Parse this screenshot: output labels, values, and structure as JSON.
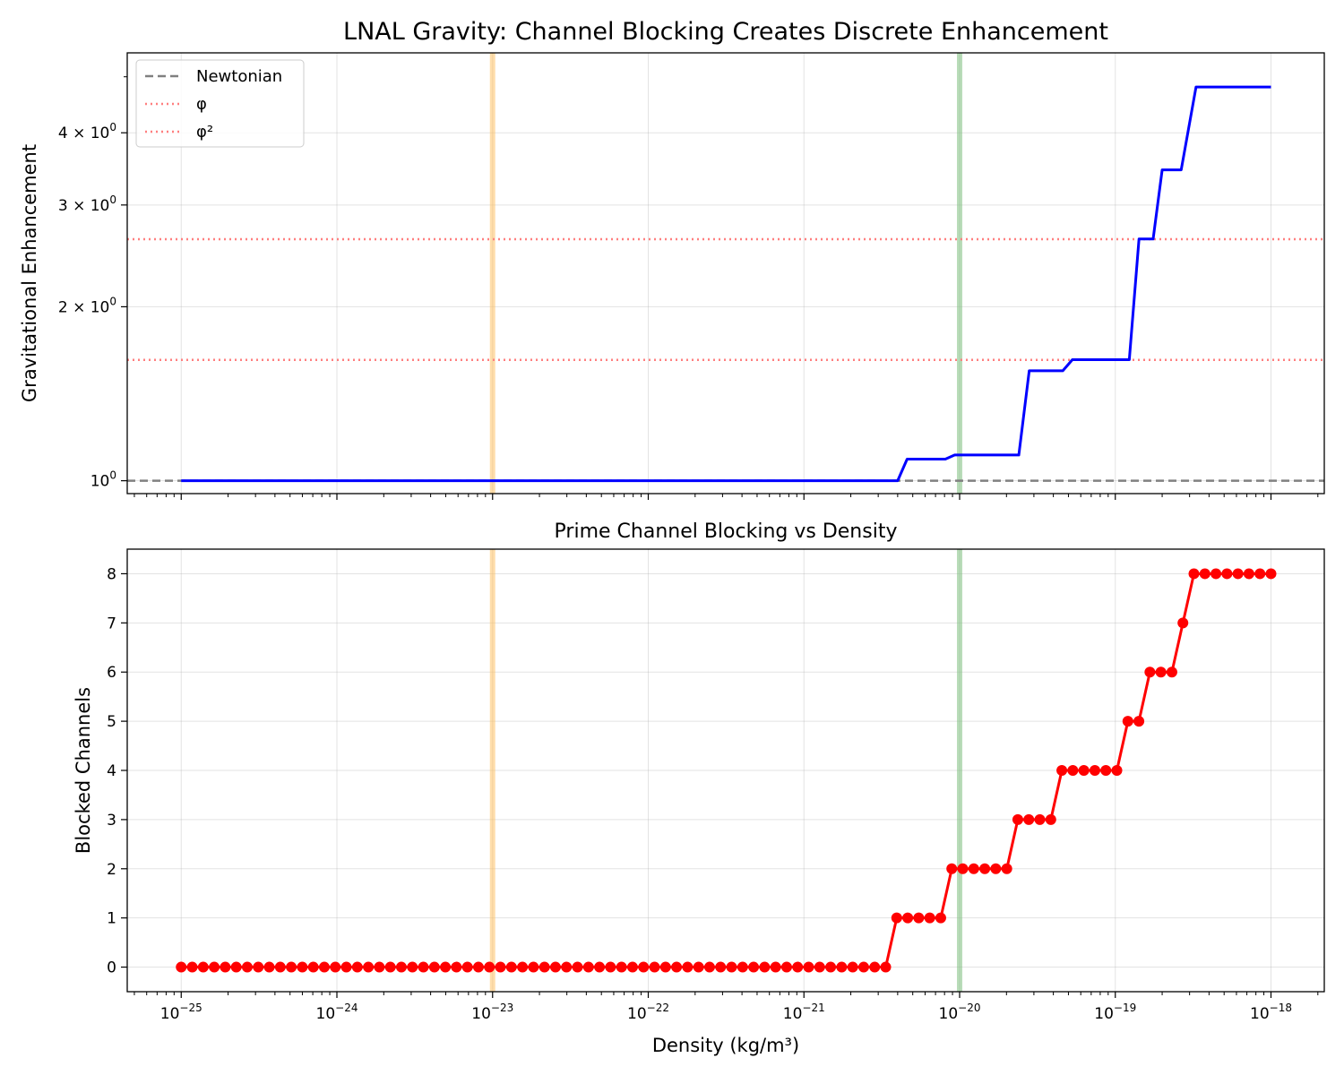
{
  "chart_data": [
    {
      "type": "line",
      "title": "LNAL Gravity: Channel Blocking Creates Discrete Enhancement",
      "xlabel": "",
      "ylabel": "Gravitational Enhancement",
      "xscale": "log",
      "yscale": "log",
      "xlim": [
        4.5e-26,
        2.2e-18
      ],
      "ylim": [
        0.95,
        5.5
      ],
      "grid": true,
      "legend_position": "top-left",
      "y_ticks": [
        {
          "value": 1,
          "base": "10",
          "exp": "0"
        },
        {
          "value": 2,
          "base": "2 × 10",
          "exp": "0"
        },
        {
          "value": 3,
          "base": "3 × 10",
          "exp": "0"
        },
        {
          "value": 4,
          "base": "4 × 10",
          "exp": "0"
        }
      ],
      "reference_lines": [
        {
          "name": "Newtonian",
          "y": 1.0,
          "color": "#808080",
          "style": "dashed"
        },
        {
          "name": "φ",
          "y": 1.618,
          "color": "#ff7f7f",
          "style": "dotted"
        },
        {
          "name": "φ²",
          "y": 2.618,
          "color": "#ff7f7f",
          "style": "dotted"
        }
      ],
      "vertical_bands": [
        {
          "x": 1e-23,
          "color": "#ffc266"
        },
        {
          "x": 1e-20,
          "color": "#80c080"
        }
      ],
      "series": [
        {
          "name": "",
          "color": "#0000ff",
          "points": [
            [
              1e-25,
              1.0
            ],
            [
              4e-21,
              1.0
            ],
            [
              4.6e-21,
              1.09
            ],
            [
              8.1e-21,
              1.09
            ],
            [
              9.3e-21,
              1.108
            ],
            [
              2.4e-20,
              1.108
            ],
            [
              2.8e-20,
              1.55
            ],
            [
              4.6e-20,
              1.55
            ],
            [
              5.3e-20,
              1.62
            ],
            [
              1.23e-19,
              1.62
            ],
            [
              1.42e-19,
              2.62
            ],
            [
              1.75e-19,
              2.62
            ],
            [
              2e-19,
              3.45
            ],
            [
              2.65e-19,
              3.45
            ],
            [
              3.3e-19,
              4.8
            ],
            [
              1e-18,
              4.8
            ]
          ]
        }
      ]
    },
    {
      "type": "line",
      "title": "Prime Channel Blocking vs Density",
      "xlabel": "Density (kg/m³)",
      "ylabel": "Blocked Channels",
      "xscale": "log",
      "xlim": [
        4.5e-26,
        2.2e-18
      ],
      "ylim": [
        -0.5,
        8.5
      ],
      "grid": true,
      "x_ticks": [
        {
          "value": 1e-25,
          "base": "10",
          "exp": "−25"
        },
        {
          "value": 1e-24,
          "base": "10",
          "exp": "−24"
        },
        {
          "value": 1e-23,
          "base": "10",
          "exp": "−23"
        },
        {
          "value": 1e-22,
          "base": "10",
          "exp": "−22"
        },
        {
          "value": 1e-21,
          "base": "10",
          "exp": "−21"
        },
        {
          "value": 1e-20,
          "base": "10",
          "exp": "−20"
        },
        {
          "value": 1e-19,
          "base": "10",
          "exp": "−19"
        },
        {
          "value": 1e-18,
          "base": "10",
          "exp": "−18"
        }
      ],
      "y_ticks": [
        "0",
        "1",
        "2",
        "3",
        "4",
        "5",
        "6",
        "7",
        "8"
      ],
      "vertical_bands": [
        {
          "x": 1e-23,
          "color": "#ffc266"
        },
        {
          "x": 1e-20,
          "color": "#80c080"
        }
      ],
      "series": [
        {
          "name": "",
          "color": "#ff0000",
          "marker": "circle",
          "x_range_log10": [
            -25,
            -18
          ],
          "num_points": 100,
          "values": [
            0,
            0,
            0,
            0,
            0,
            0,
            0,
            0,
            0,
            0,
            0,
            0,
            0,
            0,
            0,
            0,
            0,
            0,
            0,
            0,
            0,
            0,
            0,
            0,
            0,
            0,
            0,
            0,
            0,
            0,
            0,
            0,
            0,
            0,
            0,
            0,
            0,
            0,
            0,
            0,
            0,
            0,
            0,
            0,
            0,
            0,
            0,
            0,
            0,
            0,
            0,
            0,
            0,
            0,
            0,
            0,
            0,
            0,
            0,
            0,
            0,
            0,
            0,
            0,
            0,
            1,
            1,
            1,
            1,
            1,
            2,
            2,
            2,
            2,
            2,
            2,
            3,
            3,
            3,
            3,
            4,
            4,
            4,
            4,
            4,
            4,
            5,
            5,
            6,
            6,
            6,
            7,
            8,
            8,
            8,
            8,
            8,
            8,
            8,
            8
          ]
        }
      ]
    }
  ]
}
